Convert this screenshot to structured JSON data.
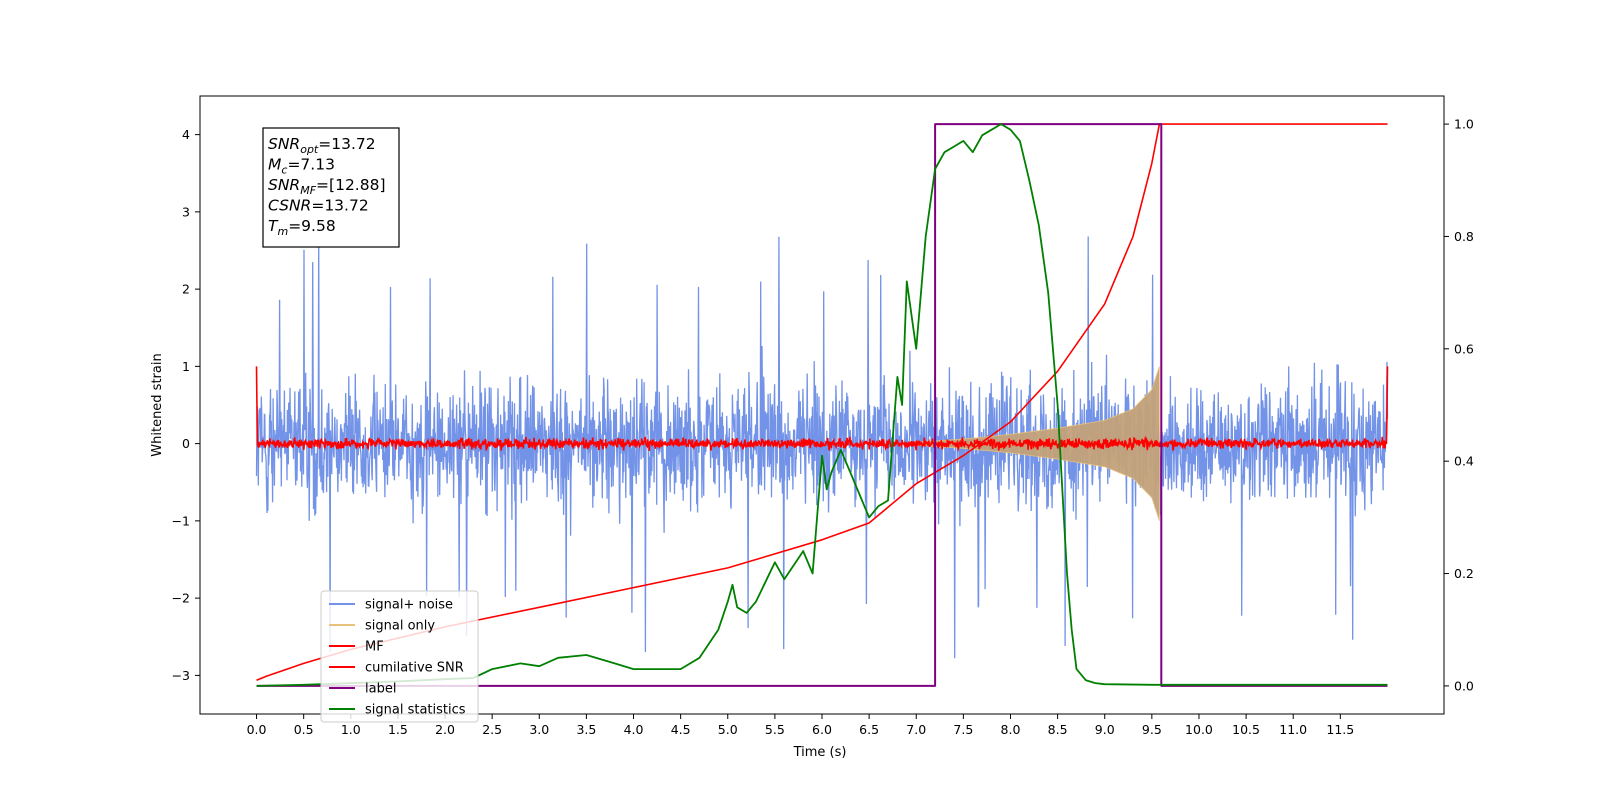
{
  "chart_data": {
    "type": "line",
    "xlabel": "Time (s)",
    "ylabel_left": "Whitened strain",
    "ylabel_right": "",
    "xlim": [
      -0.6,
      12.6
    ],
    "ylim_left": [
      -3.5,
      4.5
    ],
    "ylim_right": [
      -0.05,
      1.05
    ],
    "x_ticks": [
      "0.0",
      "0.5",
      "1.0",
      "1.5",
      "2.0",
      "2.5",
      "3.0",
      "3.5",
      "4.0",
      "4.5",
      "5.0",
      "5.5",
      "6.0",
      "6.5",
      "7.0",
      "7.5",
      "8.0",
      "8.5",
      "9.0",
      "9.5",
      "10.0",
      "10.5",
      "11.0",
      "11.5"
    ],
    "y_ticks_left": [
      "-3",
      "-2",
      "-1",
      "0",
      "1",
      "2",
      "3",
      "4"
    ],
    "y_ticks_right": [
      "0.0",
      "0.2",
      "0.4",
      "0.6",
      "0.8",
      "1.0"
    ],
    "grid": false,
    "legend_placement": "lower-left",
    "stats_box": {
      "lines": [
        {
          "sym": "SNR",
          "sub": "opt",
          "val": "=13.72"
        },
        {
          "sym": "M",
          "sub": "c",
          "val": "=7.13"
        },
        {
          "sym": "SNR",
          "sub": "MF",
          "val": "=[12.88]"
        },
        {
          "sym": "CSNR",
          "sub": "",
          "val": "=13.72"
        },
        {
          "sym": "T",
          "sub": "m",
          "val": "=9.58"
        }
      ]
    },
    "series": [
      {
        "name": "signal+ noise",
        "axis": "left",
        "color": "#7393e8",
        "kind": "noise_envelope",
        "x_range": [
          0.0,
          12.0
        ],
        "typical_range": [
          -1.6,
          1.6
        ],
        "extremes": [
          -3.1,
          3.35
        ]
      },
      {
        "name": "signal only",
        "axis": "left",
        "color": "#e8c27a",
        "fill_color": "#c4a27a",
        "kind": "chirp_envelope",
        "x": [
          7.0,
          7.5,
          8.0,
          8.5,
          9.0,
          9.3,
          9.5,
          9.58
        ],
        "amplitude": [
          0.02,
          0.06,
          0.12,
          0.2,
          0.3,
          0.45,
          0.7,
          1.0
        ]
      },
      {
        "name": "MF",
        "axis": "left",
        "color": "#ff0000",
        "kind": "noise_band",
        "x_range": [
          0.0,
          12.0
        ],
        "typical_range": [
          -0.1,
          0.1
        ],
        "edge_spike": 1.0
      },
      {
        "name": "cumilative SNR",
        "axis": "right",
        "color": "#ff0000",
        "x": [
          0.0,
          0.1,
          0.5,
          1.0,
          2.0,
          3.0,
          4.0,
          5.0,
          6.0,
          6.5,
          7.0,
          7.5,
          8.0,
          8.5,
          9.0,
          9.3,
          9.5,
          9.58,
          12.0
        ],
        "y": [
          0.01,
          0.017,
          0.04,
          0.065,
          0.105,
          0.14,
          0.175,
          0.21,
          0.26,
          0.29,
          0.36,
          0.41,
          0.47,
          0.56,
          0.68,
          0.8,
          0.93,
          1.0,
          1.0
        ]
      },
      {
        "name": "label",
        "axis": "right",
        "color": "#800080",
        "x": [
          0.0,
          7.2,
          7.2,
          9.6,
          9.6,
          12.0
        ],
        "y": [
          0.0,
          0.0,
          1.0,
          1.0,
          0.0,
          0.0
        ]
      },
      {
        "name": "signal statistics",
        "axis": "right",
        "color": "#008000",
        "x": [
          0.0,
          0.5,
          1.0,
          1.5,
          2.0,
          2.3,
          2.5,
          2.8,
          3.0,
          3.2,
          3.5,
          3.8,
          4.0,
          4.5,
          4.7,
          4.9,
          5.0,
          5.05,
          5.1,
          5.2,
          5.3,
          5.5,
          5.6,
          5.8,
          5.9,
          6.0,
          6.05,
          6.1,
          6.2,
          6.3,
          6.4,
          6.5,
          6.6,
          6.7,
          6.8,
          6.85,
          6.9,
          7.0,
          7.05,
          7.1,
          7.2,
          7.3,
          7.4,
          7.5,
          7.6,
          7.7,
          7.8,
          7.9,
          8.0,
          8.1,
          8.2,
          8.3,
          8.4,
          8.5,
          8.6,
          8.65,
          8.7,
          8.8,
          8.9,
          9.0,
          9.5,
          10.0,
          11.0,
          12.0
        ],
        "y": [
          0.0,
          0.002,
          0.005,
          0.008,
          0.012,
          0.014,
          0.03,
          0.04,
          0.035,
          0.05,
          0.055,
          0.04,
          0.03,
          0.03,
          0.05,
          0.1,
          0.15,
          0.18,
          0.14,
          0.13,
          0.15,
          0.22,
          0.19,
          0.24,
          0.2,
          0.41,
          0.35,
          0.38,
          0.42,
          0.38,
          0.34,
          0.3,
          0.32,
          0.33,
          0.55,
          0.5,
          0.72,
          0.6,
          0.7,
          0.8,
          0.92,
          0.95,
          0.96,
          0.97,
          0.95,
          0.98,
          0.99,
          1.0,
          0.99,
          0.97,
          0.9,
          0.82,
          0.7,
          0.5,
          0.2,
          0.1,
          0.03,
          0.01,
          0.005,
          0.003,
          0.002,
          0.002,
          0.002,
          0.002
        ]
      }
    ]
  }
}
